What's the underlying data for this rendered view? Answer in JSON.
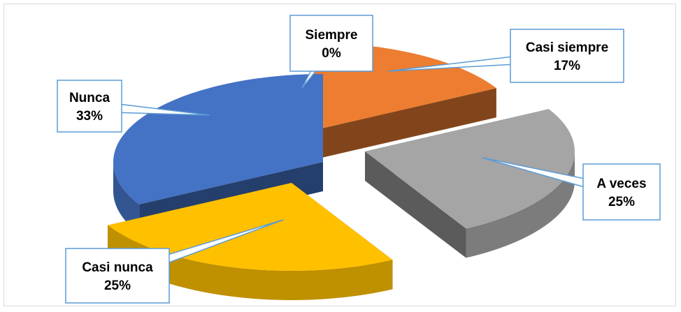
{
  "chart_data": {
    "type": "pie",
    "style": "3d-exploded",
    "title": "",
    "slices": [
      {
        "label": "Siempre",
        "value": 0,
        "percent_label": "0%",
        "color": "#4472c4"
      },
      {
        "label": "Casi siempre",
        "value": 17,
        "percent_label": "17%",
        "color": "#ed7d31"
      },
      {
        "label": "A veces",
        "value": 25,
        "percent_label": "25%",
        "color": "#a5a5a5"
      },
      {
        "label": "Casi nunca",
        "value": 25,
        "percent_label": "25%",
        "color": "#ffc000"
      },
      {
        "label": "Nunca",
        "value": 33,
        "percent_label": "33%",
        "color": "#4472c4"
      }
    ],
    "legend": "none",
    "label_style": "callout boxes with leader lines",
    "callout_border_color": "#5b9bd5"
  }
}
